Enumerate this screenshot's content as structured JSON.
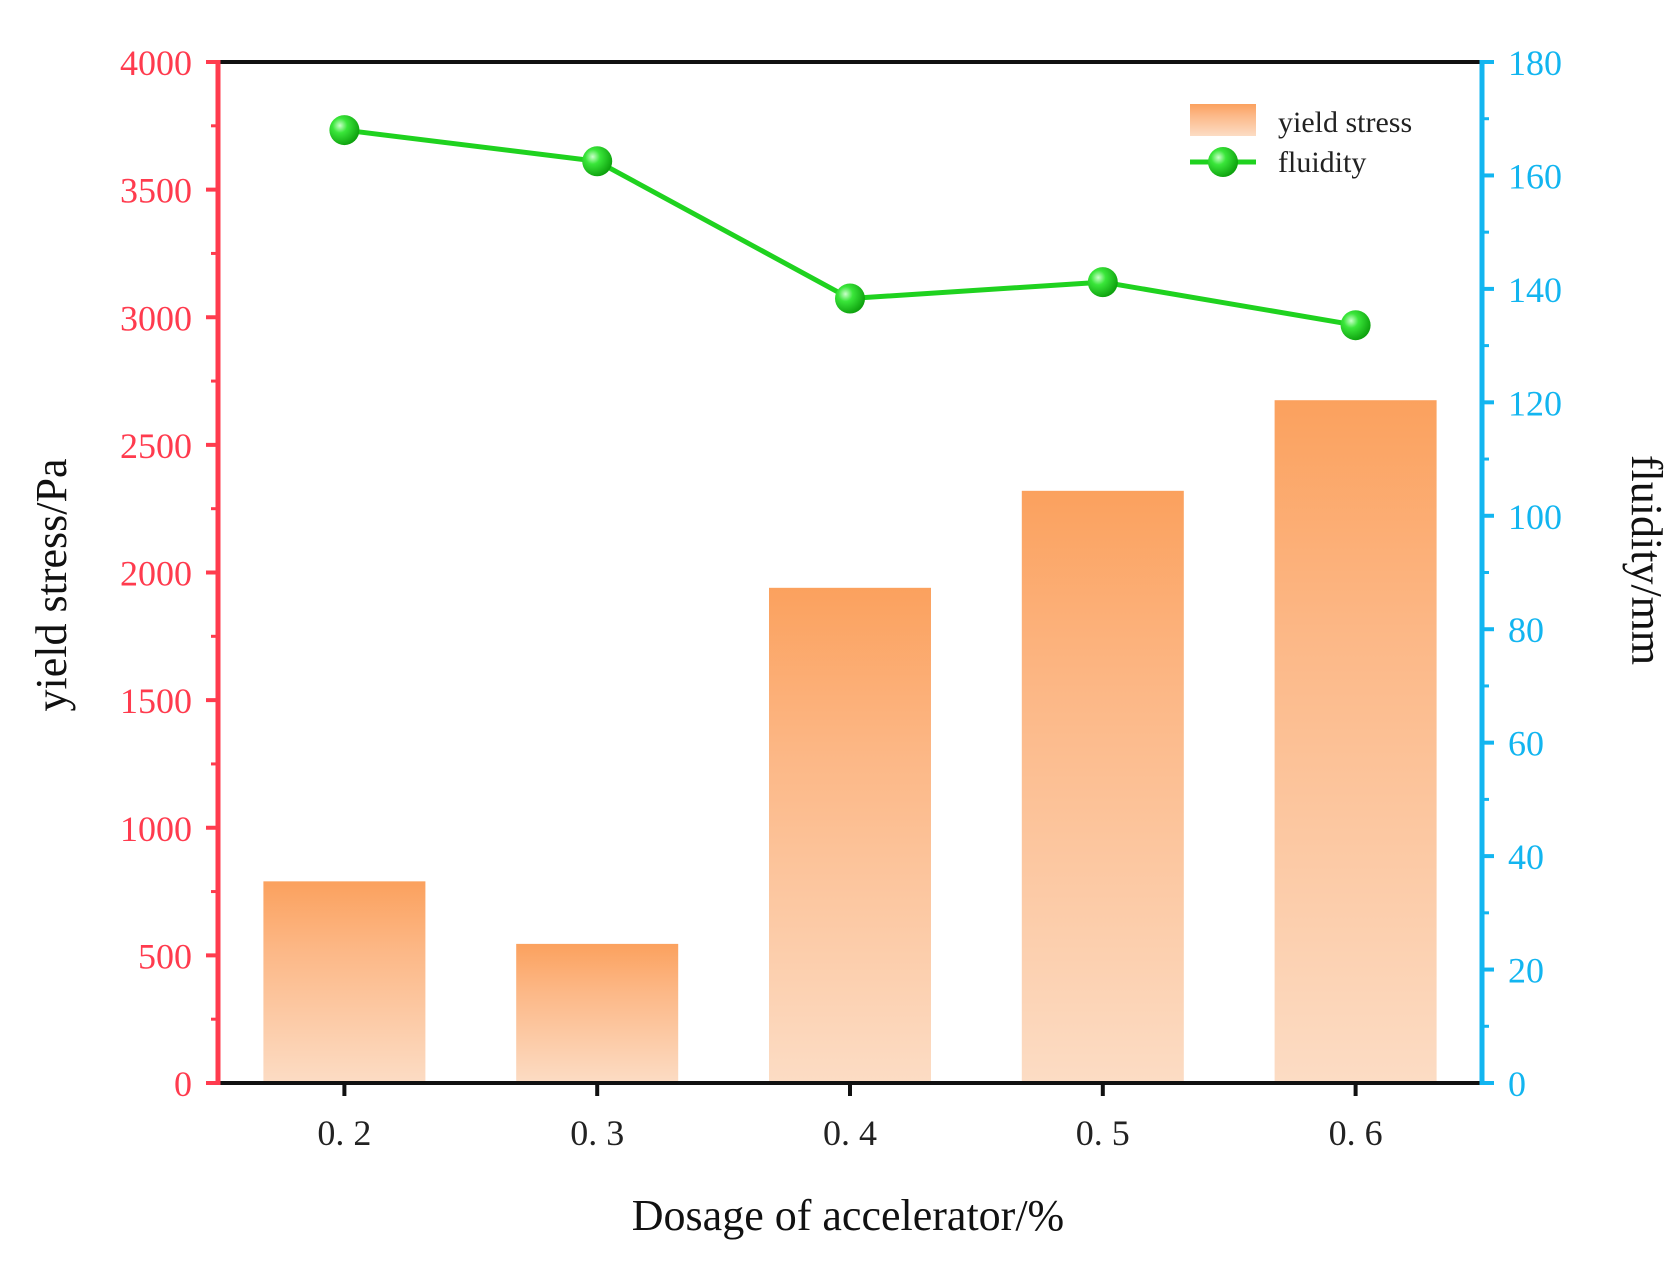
{
  "chart_data": {
    "type": "bar+line",
    "categories": [
      "0. 2",
      "0. 3",
      "0. 4",
      "0. 5",
      "0. 6"
    ],
    "series": [
      {
        "name": "yield stress",
        "type": "bar",
        "axis": "left",
        "values": [
          790,
          545,
          1940,
          2320,
          2675
        ]
      },
      {
        "name": "fluidity",
        "type": "line",
        "axis": "right",
        "values": [
          168,
          162.5,
          138.3,
          141.2,
          133.6
        ]
      }
    ],
    "xlabel": "Dosage of accelerator/%",
    "ylabel_left": "yield stress/Pa",
    "ylabel_right": "fluidity/mm",
    "ylim_left": [
      0,
      4000
    ],
    "ylim_right": [
      0,
      180
    ],
    "yticks_left": [
      0,
      500,
      1000,
      1500,
      2000,
      2500,
      3000,
      3500,
      4000
    ],
    "yticks_right": [
      0,
      20,
      40,
      60,
      80,
      100,
      120,
      140,
      160,
      180
    ],
    "ytick_labels_left": [
      "0",
      "500",
      "1000",
      "1500",
      "2000",
      "2500",
      "3000",
      "3500",
      "4000"
    ],
    "ytick_labels_right": [
      "0",
      "20",
      "40",
      "60",
      "80",
      "100",
      "120",
      "140",
      "160",
      "180"
    ],
    "legend": {
      "position": "top-right",
      "entries": [
        "yield stress",
        "fluidity"
      ]
    },
    "grid": false
  },
  "colors": {
    "left_axis": "#ff3b4e",
    "right_axis": "#12b5f0",
    "bar_top": "#fba15e",
    "bar_bottom": "#fcdcc4",
    "line": "#1fd21f",
    "marker": "#1fd21f",
    "frame": "#111111"
  }
}
